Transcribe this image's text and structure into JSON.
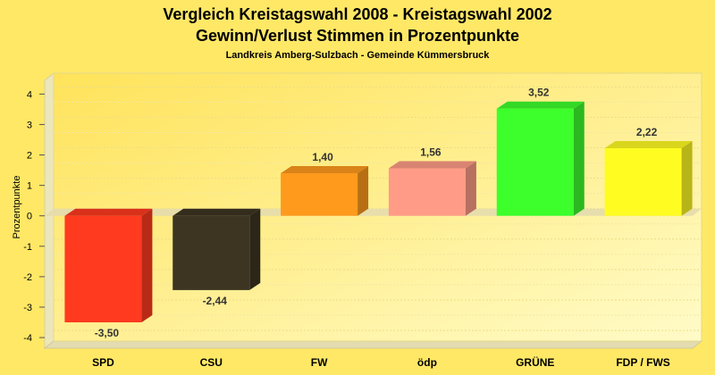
{
  "chart_data": {
    "type": "bar",
    "title": "Vergleich Kreistagswahl 2008 - Kreistagswahl 2002",
    "subtitle": "Gewinn/Verlust Stimmen in Prozentpunkte",
    "caption": "Landkreis Amberg-Sulzbach - Gemeinde Kümmersbruck",
    "ylabel": "Prozentpunkte",
    "xlabel": "",
    "ylim": [
      -4.35,
      4.45
    ],
    "yticks": [
      "-4",
      "-3",
      "-2",
      "-1",
      "0",
      "1",
      "2",
      "3",
      "4"
    ],
    "grid": true,
    "categories": [
      "SPD",
      "CSU",
      "FW",
      "ödp",
      "GRÜNE",
      "FDP / FWS"
    ],
    "values": [
      -3.5,
      -2.44,
      1.4,
      1.56,
      3.52,
      2.22
    ],
    "value_labels": [
      "-3,50",
      "-2,44",
      "1,40",
      "1,56",
      "3,52",
      "2,22"
    ],
    "colors": [
      "#ff3a1f",
      "#3d3522",
      "#ff9a1c",
      "#ff9b86",
      "#3cff2c",
      "#fffc22"
    ]
  }
}
